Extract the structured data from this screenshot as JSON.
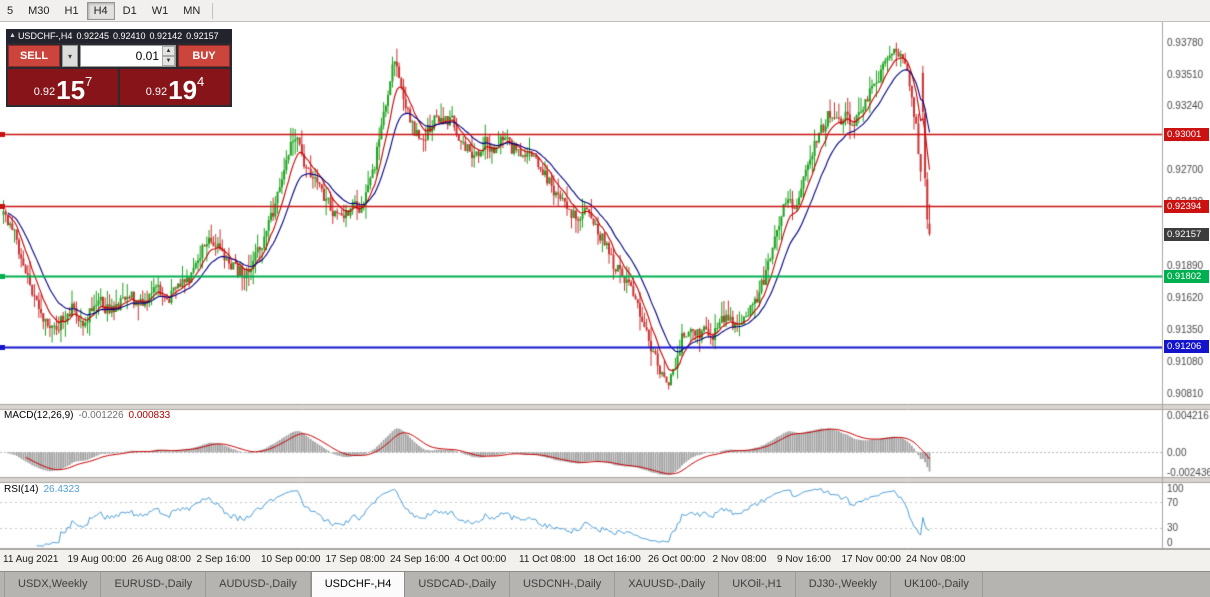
{
  "toolbar": {
    "timeframes": [
      {
        "label": "5",
        "active": false
      },
      {
        "label": "M30",
        "active": false
      },
      {
        "label": "H1",
        "active": false
      },
      {
        "label": "H4",
        "active": true
      },
      {
        "label": "D1",
        "active": false
      },
      {
        "label": "W1",
        "active": false
      },
      {
        "label": "MN",
        "active": false
      }
    ]
  },
  "trade_panel": {
    "symbol": "USDCHF-,H4",
    "open": "0.92245",
    "high": "0.92410",
    "low": "0.92142",
    "close": "0.92157",
    "sell_label": "SELL",
    "buy_label": "BUY",
    "volume": "0.01",
    "sell_price": {
      "prefix": "0.92",
      "big": "15",
      "sup": "7"
    },
    "buy_price": {
      "prefix": "0.92",
      "big": "19",
      "sup": "4"
    }
  },
  "price_scale": {
    "ticks": [
      "0.93780",
      "0.93510",
      "0.93240",
      "0.92970",
      "0.92700",
      "0.92430",
      "0.92160",
      "0.91890",
      "0.91620",
      "0.91350",
      "0.91080",
      "0.90810"
    ]
  },
  "levels": [
    {
      "label": "0.93001",
      "value": 0.93001,
      "color": "#cc1111",
      "line_width": 1.4
    },
    {
      "label": "0.92394",
      "value": 0.92394,
      "color": "#cc1111",
      "line_width": 1.4
    },
    {
      "label": "0.92157",
      "value": 0.92157,
      "color": "#3d3d3d",
      "line_width": 0,
      "current": true
    },
    {
      "label": "0.91802",
      "value": 0.91802,
      "color": "#00b050",
      "line_width": 2
    },
    {
      "label": "0.91206",
      "value": 0.91206,
      "color": "#1414cc",
      "line_width": 2.2
    }
  ],
  "macd_panel": {
    "title": "MACD(12,26,9)",
    "value1": "-0.001226",
    "value2": "0.000833",
    "axis_labels": [
      "0.004216",
      "0.00",
      "-0.002436"
    ],
    "axis_values": [
      0.004216,
      0,
      -0.002436
    ],
    "range": [
      -0.0028,
      0.0048
    ]
  },
  "rsi_panel": {
    "title": "RSI(14)",
    "value": "26.4323",
    "axis_labels": [
      "100",
      "70",
      "30",
      "0"
    ],
    "axis_values": [
      100,
      70,
      30,
      0
    ],
    "levels": [
      70,
      30
    ]
  },
  "time_axis": {
    "labels": [
      "11 Aug 2021",
      "19 Aug 00:00",
      "26 Aug 08:00",
      "2 Sep 16:00",
      "10 Sep 00:00",
      "17 Sep 08:00",
      "24 Sep 16:00",
      "4 Oct 00:00",
      "11 Oct 08:00",
      "18 Oct 16:00",
      "26 Oct 00:00",
      "2 Nov 08:00",
      "9 Nov 16:00",
      "17 Nov 00:00",
      "24 Nov 08:00"
    ]
  },
  "tabs": [
    {
      "label": "USDX,Weekly",
      "active": false
    },
    {
      "label": "EURUSD-,Daily",
      "active": false
    },
    {
      "label": "AUDUSD-,Daily",
      "active": false
    },
    {
      "label": "USDCHF-,H4",
      "active": true
    },
    {
      "label": "USDCAD-,Daily",
      "active": false
    },
    {
      "label": "USDCNH-,Daily",
      "active": false
    },
    {
      "label": "XAUUSD-,Daily",
      "active": false
    },
    {
      "label": "UKOil-,H1",
      "active": false
    },
    {
      "label": "DJ30-,Weekly",
      "active": false
    },
    {
      "label": "UK100-,Daily",
      "active": false
    }
  ],
  "chart_data": {
    "type": "candlestick",
    "symbol": "USDCHF-",
    "timeframe": "H4",
    "ohlc_current": {
      "open": 0.92245,
      "high": 0.9241,
      "low": 0.92142,
      "close": 0.92157
    },
    "y_range": [
      0.9072,
      0.9395
    ],
    "num_candles": 420,
    "waypoints": [
      [
        0,
        0.9232
      ],
      [
        0.006,
        0.9226
      ],
      [
        0.012,
        0.9215
      ],
      [
        0.02,
        0.9196
      ],
      [
        0.03,
        0.9168
      ],
      [
        0.042,
        0.9148
      ],
      [
        0.055,
        0.9136
      ],
      [
        0.065,
        0.9144
      ],
      [
        0.075,
        0.9154
      ],
      [
        0.085,
        0.9141
      ],
      [
        0.095,
        0.915
      ],
      [
        0.105,
        0.9158
      ],
      [
        0.115,
        0.9149
      ],
      [
        0.125,
        0.9157
      ],
      [
        0.135,
        0.9165
      ],
      [
        0.145,
        0.9156
      ],
      [
        0.155,
        0.9163
      ],
      [
        0.165,
        0.9172
      ],
      [
        0.175,
        0.916
      ],
      [
        0.185,
        0.9166
      ],
      [
        0.195,
        0.9174
      ],
      [
        0.205,
        0.9182
      ],
      [
        0.215,
        0.9202
      ],
      [
        0.222,
        0.9216
      ],
      [
        0.23,
        0.9205
      ],
      [
        0.24,
        0.9192
      ],
      [
        0.25,
        0.9186
      ],
      [
        0.26,
        0.9182
      ],
      [
        0.27,
        0.9192
      ],
      [
        0.28,
        0.9208
      ],
      [
        0.29,
        0.9232
      ],
      [
        0.3,
        0.9262
      ],
      [
        0.308,
        0.9288
      ],
      [
        0.315,
        0.93
      ],
      [
        0.322,
        0.9282
      ],
      [
        0.33,
        0.9268
      ],
      [
        0.34,
        0.9256
      ],
      [
        0.35,
        0.9242
      ],
      [
        0.36,
        0.9232
      ],
      [
        0.368,
        0.9228
      ],
      [
        0.376,
        0.9242
      ],
      [
        0.384,
        0.9236
      ],
      [
        0.392,
        0.9252
      ],
      [
        0.4,
        0.9272
      ],
      [
        0.408,
        0.9304
      ],
      [
        0.415,
        0.9336
      ],
      [
        0.421,
        0.9362
      ],
      [
        0.427,
        0.9348
      ],
      [
        0.435,
        0.9322
      ],
      [
        0.443,
        0.9305
      ],
      [
        0.451,
        0.9294
      ],
      [
        0.459,
        0.9304
      ],
      [
        0.467,
        0.9316
      ],
      [
        0.475,
        0.9308
      ],
      [
        0.483,
        0.9315
      ],
      [
        0.49,
        0.9302
      ],
      [
        0.5,
        0.929
      ],
      [
        0.51,
        0.9282
      ],
      [
        0.52,
        0.9294
      ],
      [
        0.53,
        0.9286
      ],
      [
        0.54,
        0.9296
      ],
      [
        0.55,
        0.9288
      ],
      [
        0.56,
        0.9278
      ],
      [
        0.57,
        0.9284
      ],
      [
        0.58,
        0.927
      ],
      [
        0.59,
        0.9258
      ],
      [
        0.6,
        0.9248
      ],
      [
        0.61,
        0.9238
      ],
      [
        0.62,
        0.9228
      ],
      [
        0.63,
        0.9234
      ],
      [
        0.64,
        0.9222
      ],
      [
        0.65,
        0.9206
      ],
      [
        0.66,
        0.9188
      ],
      [
        0.67,
        0.9178
      ],
      [
        0.68,
        0.9166
      ],
      [
        0.69,
        0.9142
      ],
      [
        0.7,
        0.9118
      ],
      [
        0.71,
        0.9098
      ],
      [
        0.718,
        0.9092
      ],
      [
        0.726,
        0.9108
      ],
      [
        0.734,
        0.913
      ],
      [
        0.742,
        0.9138
      ],
      [
        0.75,
        0.913
      ],
      [
        0.758,
        0.9136
      ],
      [
        0.766,
        0.9128
      ],
      [
        0.774,
        0.914
      ],
      [
        0.782,
        0.9146
      ],
      [
        0.79,
        0.9136
      ],
      [
        0.798,
        0.9142
      ],
      [
        0.806,
        0.915
      ],
      [
        0.814,
        0.9162
      ],
      [
        0.822,
        0.918
      ],
      [
        0.83,
        0.9206
      ],
      [
        0.838,
        0.9228
      ],
      [
        0.846,
        0.9246
      ],
      [
        0.854,
        0.9238
      ],
      [
        0.862,
        0.9256
      ],
      [
        0.87,
        0.9276
      ],
      [
        0.878,
        0.9294
      ],
      [
        0.886,
        0.9308
      ],
      [
        0.894,
        0.932
      ],
      [
        0.902,
        0.931
      ],
      [
        0.91,
        0.9318
      ],
      [
        0.918,
        0.9308
      ],
      [
        0.926,
        0.932
      ],
      [
        0.934,
        0.9332
      ],
      [
        0.942,
        0.9345
      ],
      [
        0.95,
        0.9358
      ],
      [
        0.958,
        0.9368
      ],
      [
        0.965,
        0.9372
      ],
      [
        0.972,
        0.936
      ],
      [
        0.979,
        0.9342
      ],
      [
        0.985,
        0.931
      ],
      [
        0.99,
        0.9272
      ],
      [
        0.995,
        0.9238
      ],
      [
        1,
        0.9216
      ]
    ],
    "colors": {
      "up": "#1ea31e",
      "down": "#cc3333",
      "ma_fast": "#c80000",
      "ma_slow": "#000082",
      "hist": "#a3a3a3",
      "signal": "#c80000",
      "rsi": "#4f9fd8"
    }
  }
}
